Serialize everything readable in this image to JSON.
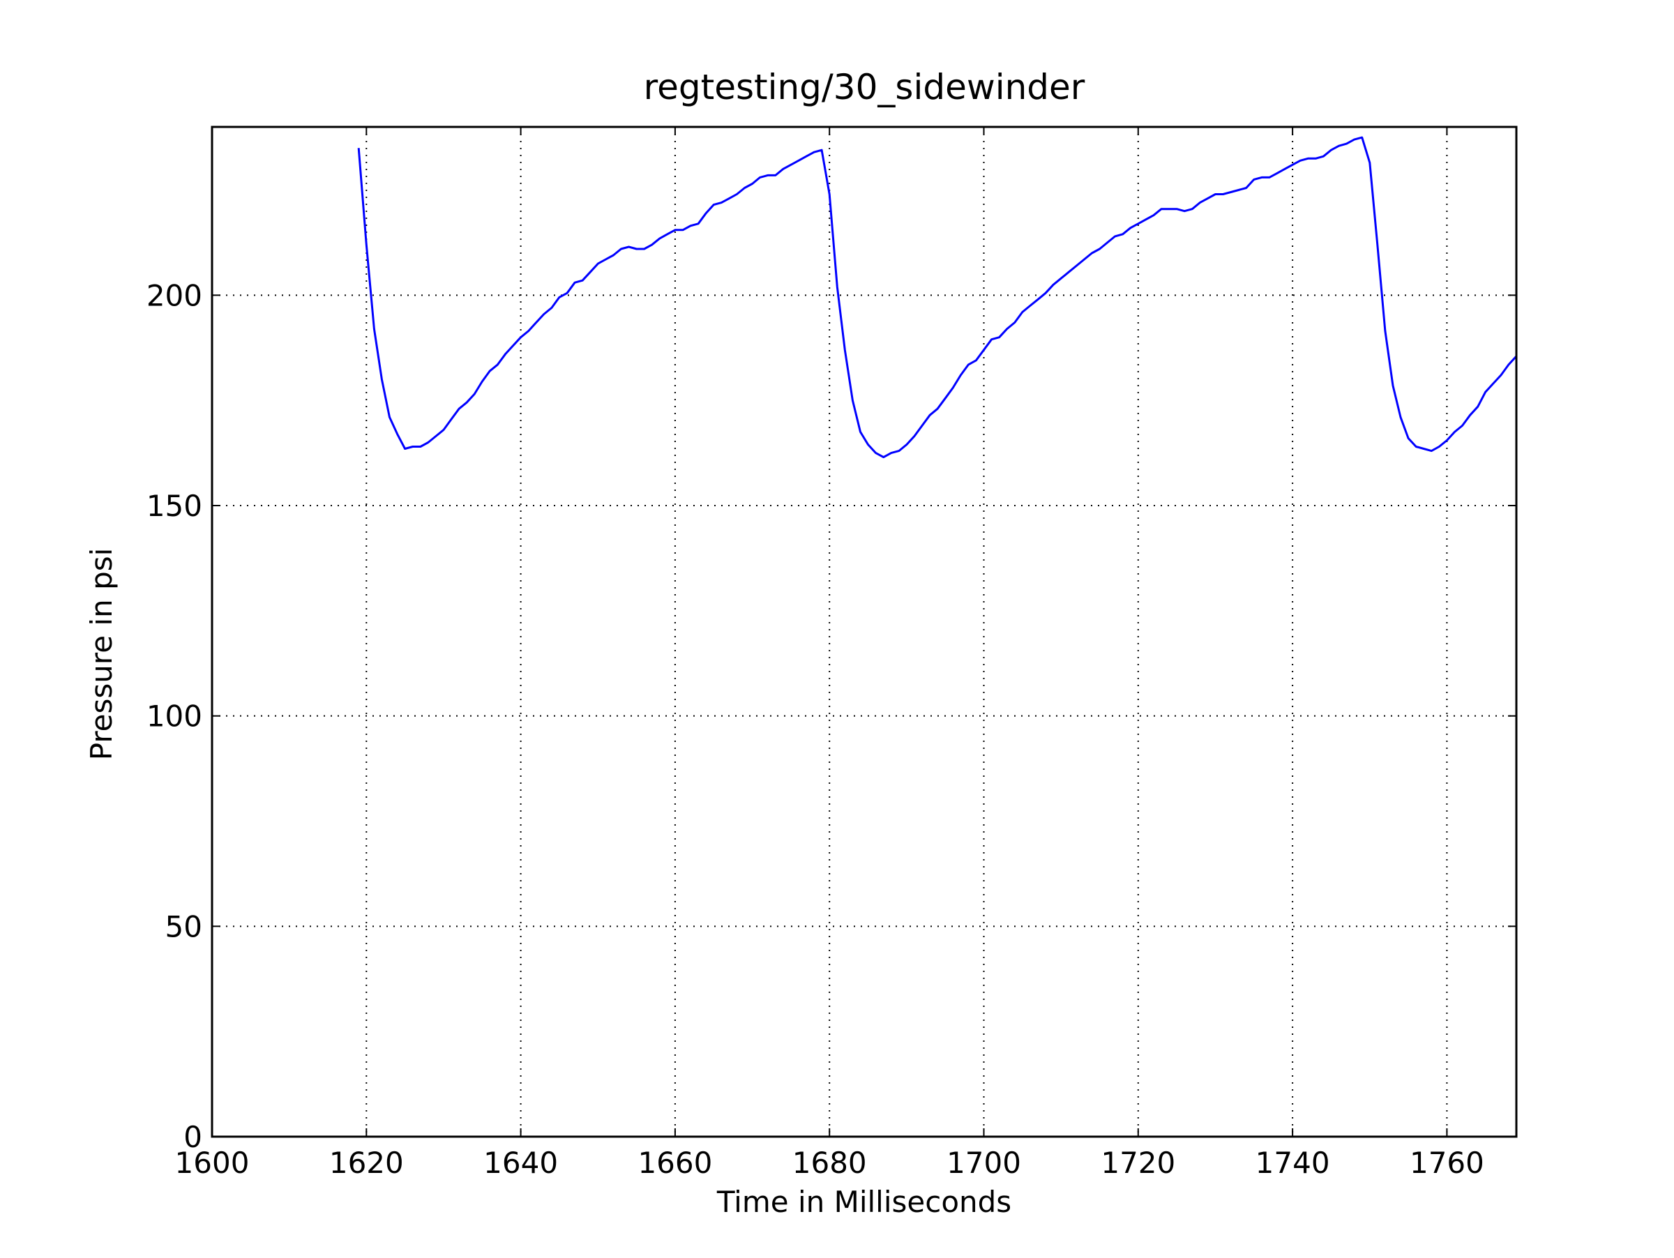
{
  "chart_data": {
    "type": "line",
    "title": "regtesting/30_sidewinder",
    "xlabel": "Time in Milliseconds",
    "ylabel": "Pressure in psi",
    "xlim": [
      1600,
      1769
    ],
    "ylim": [
      0,
      240
    ],
    "x_ticks": [
      1600,
      1620,
      1640,
      1660,
      1680,
      1700,
      1720,
      1740,
      1760
    ],
    "y_ticks": [
      0,
      50,
      100,
      150,
      200
    ],
    "grid": true,
    "line_color": "#0000ff",
    "series": [
      {
        "x": [
          1619,
          1620,
          1621,
          1622,
          1623,
          1624,
          1625,
          1626,
          1627,
          1628,
          1629,
          1630,
          1631,
          1632,
          1633,
          1634,
          1635,
          1636,
          1637,
          1638,
          1639,
          1640,
          1641,
          1642,
          1643,
          1644,
          1645,
          1646,
          1647,
          1648,
          1649,
          1650,
          1651,
          1652,
          1653,
          1654,
          1655,
          1656,
          1657,
          1658,
          1659,
          1660,
          1661,
          1662,
          1663,
          1664,
          1665,
          1666,
          1667,
          1668,
          1669,
          1670,
          1671,
          1672,
          1673,
          1674,
          1675,
          1676,
          1677,
          1678,
          1679,
          1680,
          1681,
          1682,
          1683,
          1684,
          1685,
          1686,
          1687,
          1688,
          1689,
          1690,
          1691,
          1692,
          1693,
          1694,
          1695,
          1696,
          1697,
          1698,
          1699,
          1700,
          1701,
          1702,
          1703,
          1704,
          1705,
          1706,
          1707,
          1708,
          1709,
          1710,
          1711,
          1712,
          1713,
          1714,
          1715,
          1716,
          1717,
          1718,
          1719,
          1720,
          1721,
          1722,
          1723,
          1724,
          1725,
          1726,
          1727,
          1728,
          1729,
          1730,
          1731,
          1732,
          1733,
          1734,
          1735,
          1736,
          1737,
          1738,
          1739,
          1740,
          1741,
          1742,
          1743,
          1744,
          1745,
          1746,
          1747,
          1748,
          1749,
          1750,
          1751,
          1752,
          1753,
          1754,
          1755,
          1756,
          1757,
          1758,
          1759,
          1760,
          1761,
          1762,
          1763,
          1764,
          1765,
          1766,
          1767,
          1768,
          1769
        ],
        "y": [
          235,
          212,
          192,
          180,
          171,
          167,
          163.5,
          164,
          164,
          165,
          166.5,
          168,
          170.5,
          173,
          174.5,
          176.5,
          179.5,
          182,
          183.5,
          186,
          188,
          190,
          191.5,
          193.5,
          195.5,
          197,
          199.5,
          200.5,
          203,
          203.5,
          205.5,
          207.5,
          208.5,
          209.5,
          211,
          211.5,
          211,
          211,
          212,
          213.5,
          214.5,
          215.5,
          215.5,
          216.5,
          217,
          219.5,
          221.5,
          222,
          223,
          224,
          225.5,
          226.5,
          228,
          228.5,
          228.5,
          230,
          231,
          232,
          233,
          234,
          234.5,
          224,
          202,
          187,
          175,
          167.5,
          164.5,
          162.5,
          161.5,
          162.5,
          163,
          164.5,
          166.5,
          169,
          171.5,
          173,
          175.5,
          178,
          181,
          183.5,
          184.5,
          187,
          189.5,
          190,
          192,
          193.5,
          196,
          197.5,
          199,
          200.5,
          202.5,
          204,
          205.5,
          207,
          208.5,
          210,
          211,
          212.5,
          214,
          214.5,
          216,
          217,
          218,
          219,
          220.5,
          220.5,
          220.5,
          220,
          220.5,
          222,
          223,
          224,
          224,
          224.5,
          225,
          225.5,
          227.5,
          228,
          228,
          229,
          230,
          231,
          232,
          232.5,
          232.5,
          233,
          234.5,
          235.5,
          236,
          237,
          237.5,
          231.5,
          212,
          191.5,
          178.5,
          171,
          166,
          164,
          163.5,
          163,
          164,
          165.5,
          167.5,
          169,
          171.5,
          173.5,
          177,
          179,
          181,
          183.5,
          185.5
        ]
      }
    ]
  }
}
